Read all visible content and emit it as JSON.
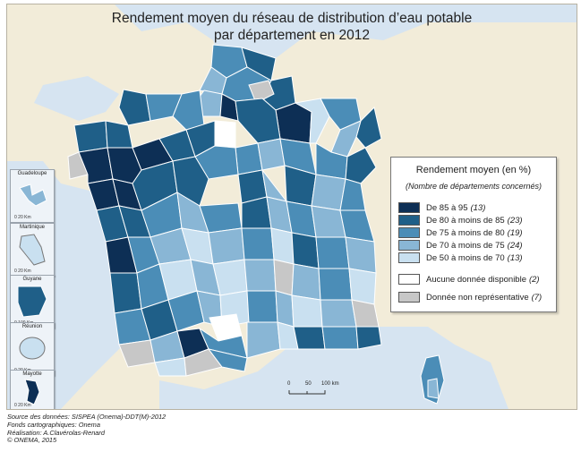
{
  "title_line1": "Rendement moyen du réseau de distribution d’eau potable",
  "title_line2": "par département en 2012",
  "legend": {
    "title": "Rendement moyen (en %)",
    "subtitle": "(Nombre de départements concernés)",
    "classes": [
      {
        "label": "De 85 à 95",
        "count": "(13)",
        "color": "#0d2f55"
      },
      {
        "label": "De 80 à moins de 85",
        "count": "(23)",
        "color": "#1f5f88"
      },
      {
        "label": "De 75 à moins de 80",
        "count": "(19)",
        "color": "#4b8db7"
      },
      {
        "label": "De 70 à moins de 75",
        "count": "(24)",
        "color": "#89b6d5"
      },
      {
        "label": "De 50 à moins de 70",
        "count": "(13)",
        "color": "#c9e0f0"
      },
      {
        "label": "Aucune donnée disponible",
        "count": "(2)",
        "color": "#ffffff"
      },
      {
        "label": "Donnée non représentative",
        "count": "(7)",
        "color": "#c7c7c7"
      }
    ]
  },
  "insets": [
    {
      "name": "Guadeloupe",
      "scale": "0    20 Km"
    },
    {
      "name": "Martinique",
      "scale": "0    20 Km"
    },
    {
      "name": "Guyane",
      "scale": "0   100 Km"
    },
    {
      "name": "Réunion",
      "scale": "0    20 Km"
    },
    {
      "name": "Mayotte",
      "scale": "0    20 Km"
    }
  ],
  "scalebar": {
    "l0": "0",
    "l1": "50",
    "l2": "100 km"
  },
  "credits": [
    "Source des données: SISPEA (Onema)-DDT(M)-2012",
    "Fonds cartographiques: Onema",
    "Réalisation: A.Clavérolas-Renard",
    "© ONEMA, 2015"
  ],
  "colors": {
    "sea": "#dce8f3",
    "land": "#f2ecd9",
    "border": "#ffffff"
  }
}
